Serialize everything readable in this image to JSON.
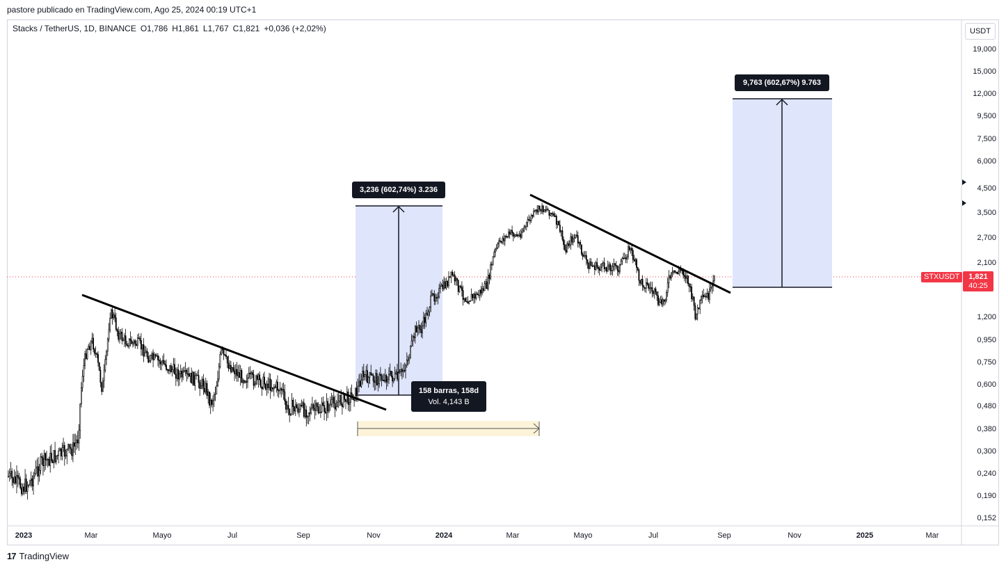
{
  "header": {
    "published_line": "pastore publicado en TradingView.com, Ago 25, 2024 00:19 UTC+1"
  },
  "legend": {
    "symbol_desc": "Stacks / TetherUS, 1D, BINANCE",
    "open": "O1,786",
    "high": "H1,861",
    "low": "L1,767",
    "close": "C1,821",
    "change": "+0,036 (+2,02%)"
  },
  "price_axis": {
    "unit": "USDT",
    "labels": [
      "19,000",
      "15,000",
      "12,000",
      "9,500",
      "7,500",
      "6,000",
      "4,500",
      "3,500",
      "2,700",
      "2,100",
      "1,200",
      "0,950",
      "0,750",
      "0,600",
      "0,480",
      "0,380",
      "0,300",
      "0,240",
      "0,190",
      "0,152"
    ]
  },
  "time_axis": {
    "labels": [
      "2023",
      "Mar",
      "Mayo",
      "Jul",
      "Sep",
      "Nov",
      "2024",
      "Mar",
      "Mayo",
      "Jul",
      "Sep",
      "Nov",
      "2025",
      "Mar"
    ]
  },
  "current_price": {
    "symbol": "STXUSDT",
    "price": "1,821",
    "countdown": "40:25",
    "color": "#f23645"
  },
  "annotations": {
    "measure_1": "3,236 (602,74%) 3.236",
    "measure_2": "9,763 (602,67%) 9.763",
    "bars_info": "158 barras, 158d",
    "vol_info": "Vol. 4,143 B"
  },
  "colors": {
    "projection_fill": "#dfe5fb",
    "date_range_fill": "#fdf3d9",
    "trendline": "#000000",
    "candles": "#000000"
  },
  "footer": {
    "brand": "TradingView",
    "brand_mark": "17"
  }
}
